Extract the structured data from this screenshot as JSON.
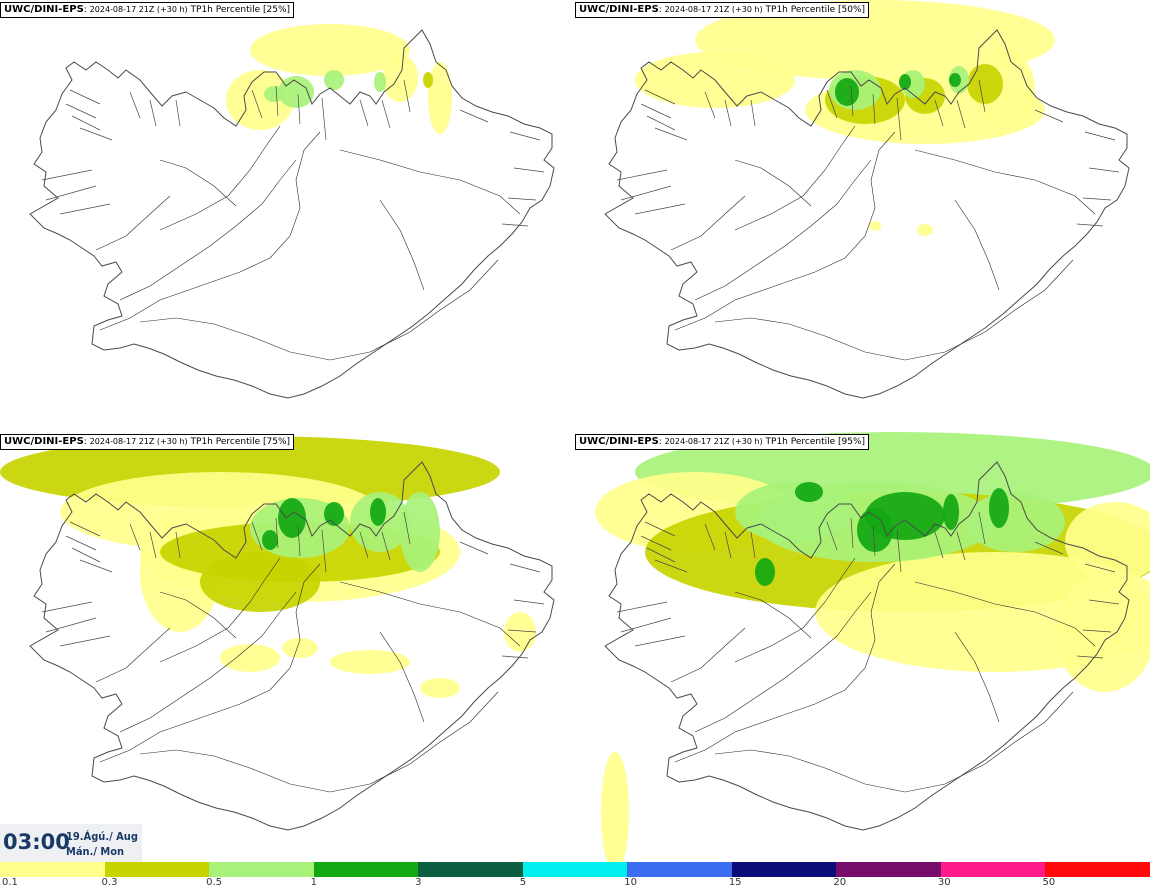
{
  "panels": [
    {
      "model": "UWC/DINI-EPS",
      "run": "2024-08-17 21Z (+30 h)",
      "field": "TP1h Percentile [25%]",
      "level": 0
    },
    {
      "model": "UWC/DINI-EPS",
      "run": "2024-08-17 21Z (+30 h)",
      "field": "TP1h Percentile [50%]",
      "level": 1
    },
    {
      "model": "UWC/DINI-EPS",
      "run": "2024-08-17 21Z (+30 h)",
      "field": "TP1h Percentile [75%]",
      "level": 2
    },
    {
      "model": "UWC/DINI-EPS",
      "run": "2024-08-17 21Z (+30 h)",
      "field": "TP1h Percentile [95%]",
      "level": 3
    }
  ],
  "time": {
    "hour": "03:00",
    "date_line1": "19.Ágú./ Aug",
    "date_line2": "Mán./ Mon"
  },
  "colorbar": {
    "colors": [
      "#ffff8c",
      "#c8d400",
      "#a8f27a",
      "#12a812",
      "#0c5e40",
      "#00f0f0",
      "#3c6cf0",
      "#0c0c78",
      "#780c6c",
      "#ff1a8c",
      "#ff0a0a"
    ],
    "ticks": [
      "0.1",
      "0.3",
      "0.5",
      "1",
      "3",
      "5",
      "10",
      "15",
      "20",
      "30",
      "50"
    ]
  },
  "map_colors": {
    "coast": "#4a4a4a",
    "road": "#2a2a2a"
  }
}
